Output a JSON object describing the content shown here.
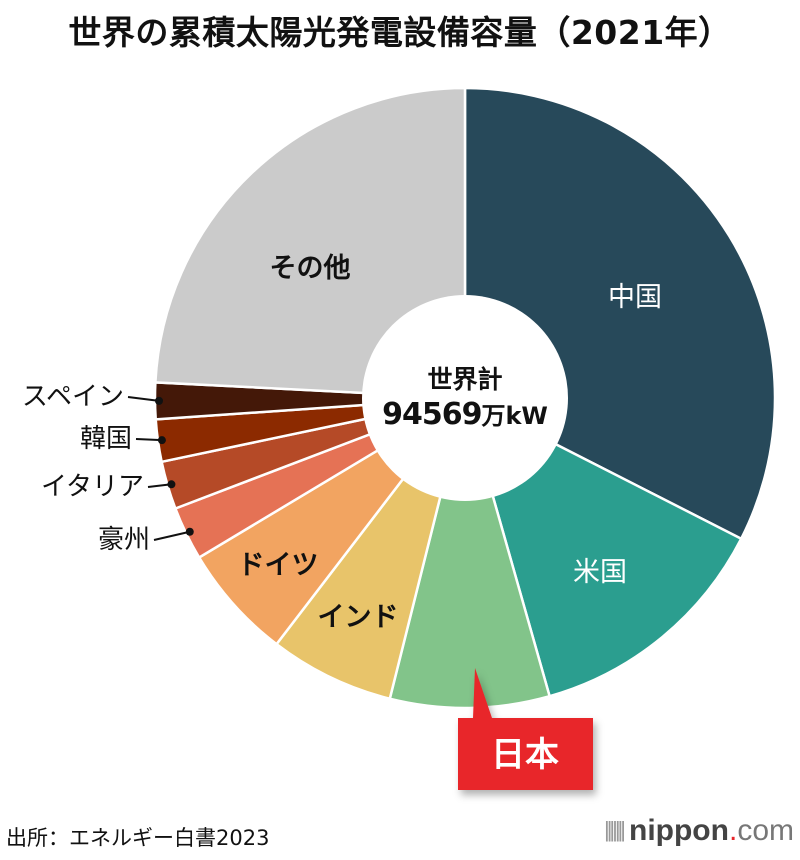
{
  "chart_data": {
    "type": "pie",
    "title": "世界の累積太陽光発電設備容量（2021年）",
    "center_label": "世界計",
    "center_value": "94569",
    "center_unit": "万kW",
    "unit": "percent share (estimated from slice angles)",
    "slices": [
      {
        "label": "中国",
        "value": 32.5,
        "color": "#27495a",
        "text_color": "#ffffff"
      },
      {
        "label": "米国",
        "value": 13.1,
        "color": "#2b9e8f",
        "text_color": "#ffffff"
      },
      {
        "label": "日本",
        "value": 8.3,
        "color": "#82c48a",
        "text_color": "#ffffff",
        "highlight": true,
        "highlight_color": "#e8252a"
      },
      {
        "label": "インド",
        "value": 6.5,
        "color": "#e8c46a",
        "text_color": "#111111"
      },
      {
        "label": "ドイツ",
        "value": 6.0,
        "color": "#f2a461",
        "text_color": "#111111"
      },
      {
        "label": "豪州",
        "value": 2.8,
        "color": "#e57255",
        "text_color": "#111111",
        "outside": true
      },
      {
        "label": "イタリア",
        "value": 2.5,
        "color": "#b54a27",
        "text_color": "#111111",
        "outside": true
      },
      {
        "label": "韓国",
        "value": 2.2,
        "color": "#8c2a00",
        "text_color": "#111111",
        "outside": true
      },
      {
        "label": "スペイン",
        "value": 1.9,
        "color": "#441808",
        "text_color": "#111111",
        "outside": true
      },
      {
        "label": "その他",
        "value": 24.2,
        "color": "#cbcbcb",
        "text_color": "#111111"
      }
    ]
  },
  "footer": {
    "source": "出所：エネルギー白書2023",
    "logo_main": "nippon",
    "logo_dot": ".",
    "logo_com": "com"
  }
}
